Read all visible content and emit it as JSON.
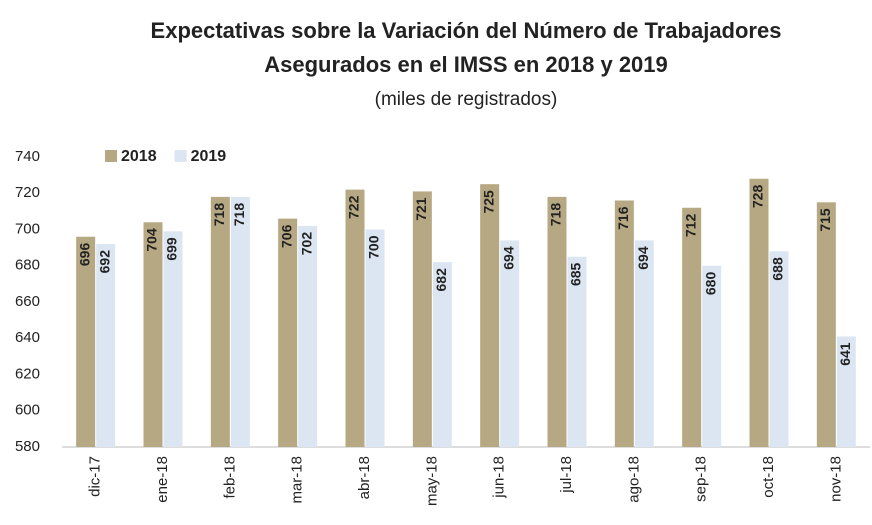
{
  "chart_data": {
    "type": "bar",
    "title": [
      "Expectativas sobre la Variación del Número de Trabajadores",
      "Asegurados en el IMSS en 2018 y 2019"
    ],
    "subtitle": "(miles de registrados)",
    "categories": [
      "dic-17",
      "ene-18",
      "feb-18",
      "mar-18",
      "abr-18",
      "may-18",
      "jun-18",
      "jul-18",
      "ago-18",
      "sep-18",
      "oct-18",
      "nov-18"
    ],
    "series": [
      {
        "name": "2018",
        "color": "#b5a882",
        "values": [
          696,
          704,
          718,
          706,
          722,
          721,
          725,
          718,
          716,
          712,
          728,
          715
        ]
      },
      {
        "name": "2019",
        "color": "#dce6f2",
        "values": [
          692,
          699,
          718,
          702,
          700,
          682,
          694,
          685,
          694,
          680,
          688,
          641
        ]
      }
    ],
    "ylim": [
      580,
      740
    ],
    "yticks": [
      580,
      600,
      620,
      640,
      660,
      680,
      700,
      720,
      740
    ],
    "legend": "top-left",
    "grid": false
  }
}
